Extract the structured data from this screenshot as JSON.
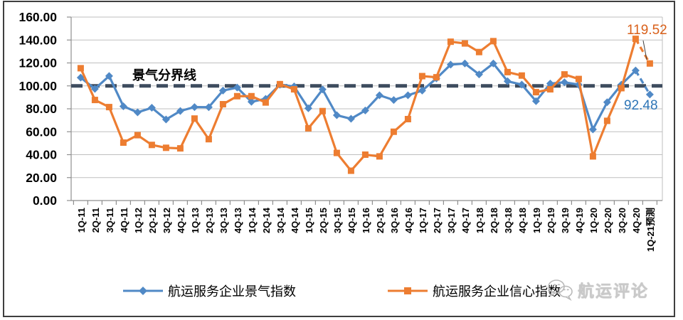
{
  "page": {
    "border_color": "#3f3f3f",
    "background": "#ffffff"
  },
  "boundary_line_label": "景气分界线",
  "annotations": {
    "confidence_forecast_value": "119.52",
    "prosperity_forecast_value": "92.48"
  },
  "legend": {
    "prosperity_label": "航运服务企业景气指数",
    "confidence_label": "航运服务企业信心指数"
  },
  "watermark": {
    "text": "航运评论",
    "icon": "wechat-icon"
  },
  "chart_data": {
    "type": "line",
    "categories": [
      "1Q-11",
      "2Q-11",
      "3Q-11",
      "4Q-11",
      "1Q-12",
      "2Q-12",
      "3Q-12",
      "4Q-12",
      "1Q-13",
      "2Q-13",
      "3Q-13",
      "4Q-13",
      "1Q-14",
      "2Q-14",
      "3Q-14",
      "4Q-14",
      "1Q-15",
      "2Q-15",
      "3Q-15",
      "4Q-15",
      "1Q-16",
      "2Q-16",
      "3Q-16",
      "4Q-16",
      "1Q-17",
      "2Q-17",
      "3Q-17",
      "4Q-17",
      "1Q-18",
      "2Q-18",
      "3Q-18",
      "4Q-18",
      "1Q-19",
      "2Q-19",
      "3Q-19",
      "4Q-19",
      "1Q-20",
      "2Q-20",
      "3Q-20",
      "4Q-20",
      "1Q-21预测"
    ],
    "series": [
      {
        "name": "航运服务企业景气指数",
        "color": "#5089c6",
        "marker": "diamond",
        "last_segment_dashed": true,
        "end_label": "92.48",
        "values": [
          107.2,
          97.4,
          108.6,
          82.2,
          76.9,
          80.9,
          70.7,
          78.1,
          81.5,
          81.4,
          95.9,
          98.5,
          86.1,
          88.7,
          101.0,
          99.5,
          80.5,
          96.9,
          74.4,
          71.3,
          78.5,
          91.8,
          87.7,
          91.8,
          95.9,
          106.5,
          118.5,
          119.5,
          110.0,
          119.5,
          104.0,
          101.1,
          86.7,
          102.0,
          103.1,
          101.1,
          62.0,
          85.7,
          101.1,
          113.4,
          92.48
        ]
      },
      {
        "name": "航运服务企业信心指数",
        "color": "#ed7d31",
        "marker": "square",
        "last_segment_dashed": true,
        "end_label": "119.52",
        "values": [
          115.4,
          87.7,
          81.5,
          50.5,
          57.0,
          48.5,
          46.0,
          45.5,
          71.5,
          53.5,
          84.0,
          91.0,
          91.0,
          85.5,
          101.5,
          97.0,
          63.0,
          78.0,
          41.5,
          26.0,
          40.0,
          38.5,
          60.0,
          71.0,
          108.5,
          107.5,
          138.5,
          137.0,
          129.5,
          139.0,
          112.0,
          109.0,
          94.5,
          97.0,
          110.0,
          106.0,
          38.5,
          69.5,
          98.0,
          141.0,
          119.52
        ]
      }
    ],
    "title": "",
    "xlabel": "",
    "ylabel": "",
    "ylim": [
      0,
      160
    ],
    "ytick_step": 20,
    "ytick_format_decimals": 2,
    "grid": true,
    "gridline_color": "#bfbfbf",
    "axis_color": "#8f8f8f",
    "refline": {
      "value": 100,
      "label": "景气分界线",
      "color": "#3e4c5e",
      "style": "dashed"
    },
    "legend_position": "bottom",
    "leader_line": {
      "from_x": 904,
      "from_y": 57,
      "to_x": 909,
      "to_y": 84,
      "color": "#404040"
    }
  }
}
